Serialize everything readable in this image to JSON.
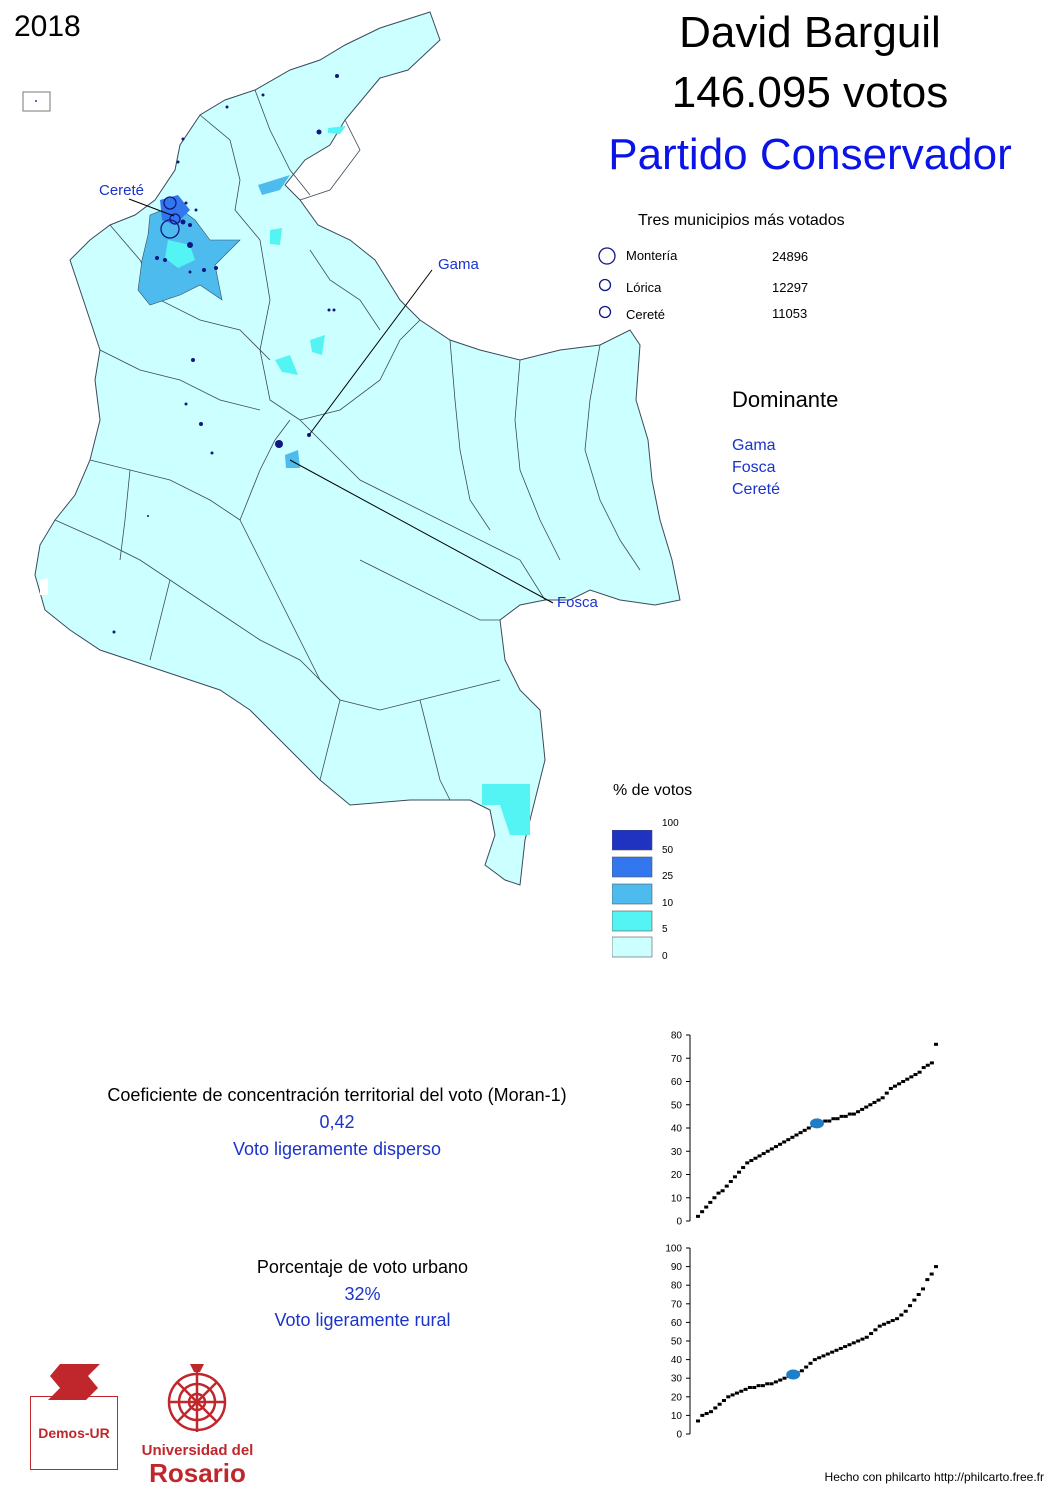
{
  "year": "2018",
  "candidate": {
    "name": "David Barguil",
    "votes": "146.095 votos",
    "party": "Partido Conservador",
    "party_color": "#0a14e6"
  },
  "top_municipalities": {
    "title": "Tres municipios más votados",
    "items": [
      {
        "name": "Montería",
        "votes": "24896"
      },
      {
        "name": "Lórica",
        "votes": "12297"
      },
      {
        "name": "Cereté",
        "votes": "11053"
      }
    ]
  },
  "dominant": {
    "title": "Dominante",
    "items": [
      "Gama",
      "Fosca",
      "Cereté"
    ]
  },
  "map_labels": {
    "cerete": "Cereté",
    "gama": "Gama",
    "fosca": "Fosca"
  },
  "legend": {
    "title": "% de votos",
    "ticks": [
      "100",
      "50",
      "25",
      "10",
      "5",
      "0"
    ],
    "classes": [
      {
        "range": "50-100",
        "color": "#1f33c0"
      },
      {
        "range": "25-50",
        "color": "#3377ee"
      },
      {
        "range": "10-25",
        "color": "#4dbbee"
      },
      {
        "range": "5-10",
        "color": "#55f4f4"
      },
      {
        "range": "0-5",
        "color": "#ccffff"
      }
    ]
  },
  "stats": {
    "moran": {
      "title": "Coeficiente de concentración territorial del voto (Moran-1)",
      "value": "0,42",
      "description": "Voto ligeramente disperso"
    },
    "urban": {
      "title": "Porcentaje de voto urbano",
      "value": "32%",
      "description": "Voto ligeramente rural"
    }
  },
  "logos": {
    "demos": "Demos-UR",
    "university_line1": "Universidad del",
    "university_line2": "Rosario"
  },
  "credit": "Hecho con philcarto http://philcarto.free.fr",
  "chart_data": [
    {
      "type": "scatter",
      "title": "",
      "ylim": [
        0,
        80
      ],
      "yticks": [
        "0",
        "10",
        "20",
        "30",
        "40",
        "50",
        "60",
        "70",
        "80"
      ],
      "highlight_value": 42,
      "values_sorted": [
        2,
        4,
        6,
        8,
        10,
        12,
        13,
        15,
        17,
        19,
        21,
        23,
        25,
        26,
        27,
        28,
        29,
        30,
        31,
        32,
        33,
        34,
        35,
        36,
        37,
        38,
        39,
        40,
        41,
        42,
        42,
        43,
        43,
        44,
        44,
        45,
        45,
        46,
        46,
        47,
        48,
        49,
        50,
        51,
        52,
        53,
        55,
        57,
        58,
        59,
        60,
        61,
        62,
        63,
        64,
        66,
        67,
        68,
        76
      ]
    },
    {
      "type": "scatter",
      "title": "",
      "ylim": [
        0,
        100
      ],
      "yticks": [
        "0",
        "10",
        "20",
        "30",
        "40",
        "50",
        "60",
        "70",
        "80",
        "90",
        "100"
      ],
      "highlight_value": 32,
      "values_sorted": [
        7,
        10,
        11,
        12,
        14,
        16,
        18,
        20,
        21,
        22,
        23,
        24,
        25,
        25,
        26,
        26,
        27,
        27,
        28,
        29,
        30,
        31,
        32,
        33,
        34,
        36,
        38,
        40,
        41,
        42,
        43,
        44,
        45,
        46,
        47,
        48,
        49,
        50,
        51,
        52,
        54,
        56,
        58,
        59,
        60,
        61,
        62,
        64,
        66,
        69,
        72,
        75,
        78,
        83,
        86,
        90
      ]
    }
  ]
}
